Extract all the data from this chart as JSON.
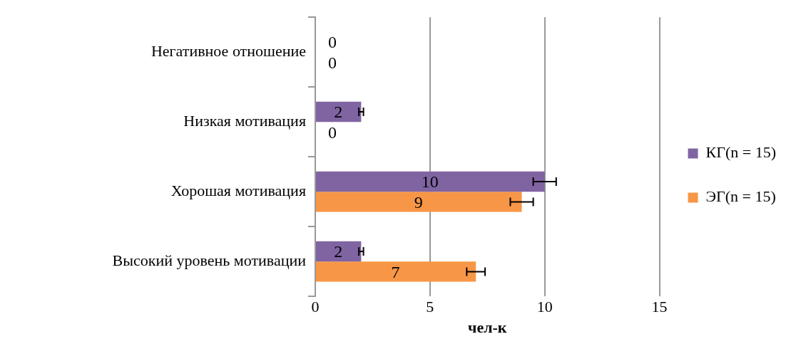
{
  "chart_data": {
    "type": "bar",
    "orientation": "horizontal",
    "xlabel": "чел-к",
    "categories": [
      "Негативное отношение",
      "Низкая мотивация",
      "Хорошая мотивация",
      "Высокий уровень мотивации"
    ],
    "series": [
      {
        "name": "КГ(n = 15)",
        "color": "#8064a2",
        "values": [
          0,
          2,
          10,
          2
        ],
        "errors": [
          null,
          0.1,
          0.5,
          0.1
        ]
      },
      {
        "name": "ЭГ(n = 15)",
        "color": "#f79646",
        "values": [
          0,
          0,
          9,
          7
        ],
        "errors": [
          null,
          null,
          0.5,
          0.4
        ]
      }
    ],
    "xlim": [
      0,
      15
    ],
    "xticks": [
      0,
      5,
      10,
      15
    ],
    "grid": "x",
    "legend": "right",
    "data_labels": true
  }
}
